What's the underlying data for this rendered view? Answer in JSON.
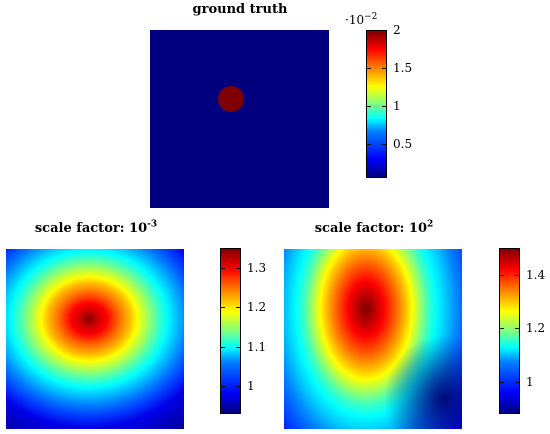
{
  "chart_data": [
    {
      "type": "heatmap",
      "title": "ground truth",
      "description_values": {
        "background": 0.0,
        "disk": 0.02
      },
      "colorbar": {
        "multiplier_base": "·10",
        "multiplier_exp": "−2",
        "ticks": [
          "2",
          "1.5",
          "1",
          "0.5"
        ],
        "tick_values": [
          2.0,
          1.5,
          1.0,
          0.5
        ],
        "range": [
          0.05,
          2.0
        ]
      }
    },
    {
      "type": "heatmap",
      "title_prefix": "scale factor: ",
      "title_base": "10",
      "title_exp": "-3",
      "colorbar": {
        "ticks": [
          "1.3",
          "1.2",
          "1.1",
          "1"
        ],
        "tick_values": [
          1.3,
          1.2,
          1.1,
          1.0
        ],
        "range": [
          0.93,
          1.35
        ]
      }
    },
    {
      "type": "heatmap",
      "title_prefix": "scale factor: ",
      "title_base": "10",
      "title_exp": "2",
      "colorbar": {
        "ticks": [
          "1.4",
          "1.2",
          "1"
        ],
        "tick_values": [
          1.4,
          1.2,
          1.0
        ],
        "range": [
          0.88,
          1.5
        ]
      }
    }
  ]
}
